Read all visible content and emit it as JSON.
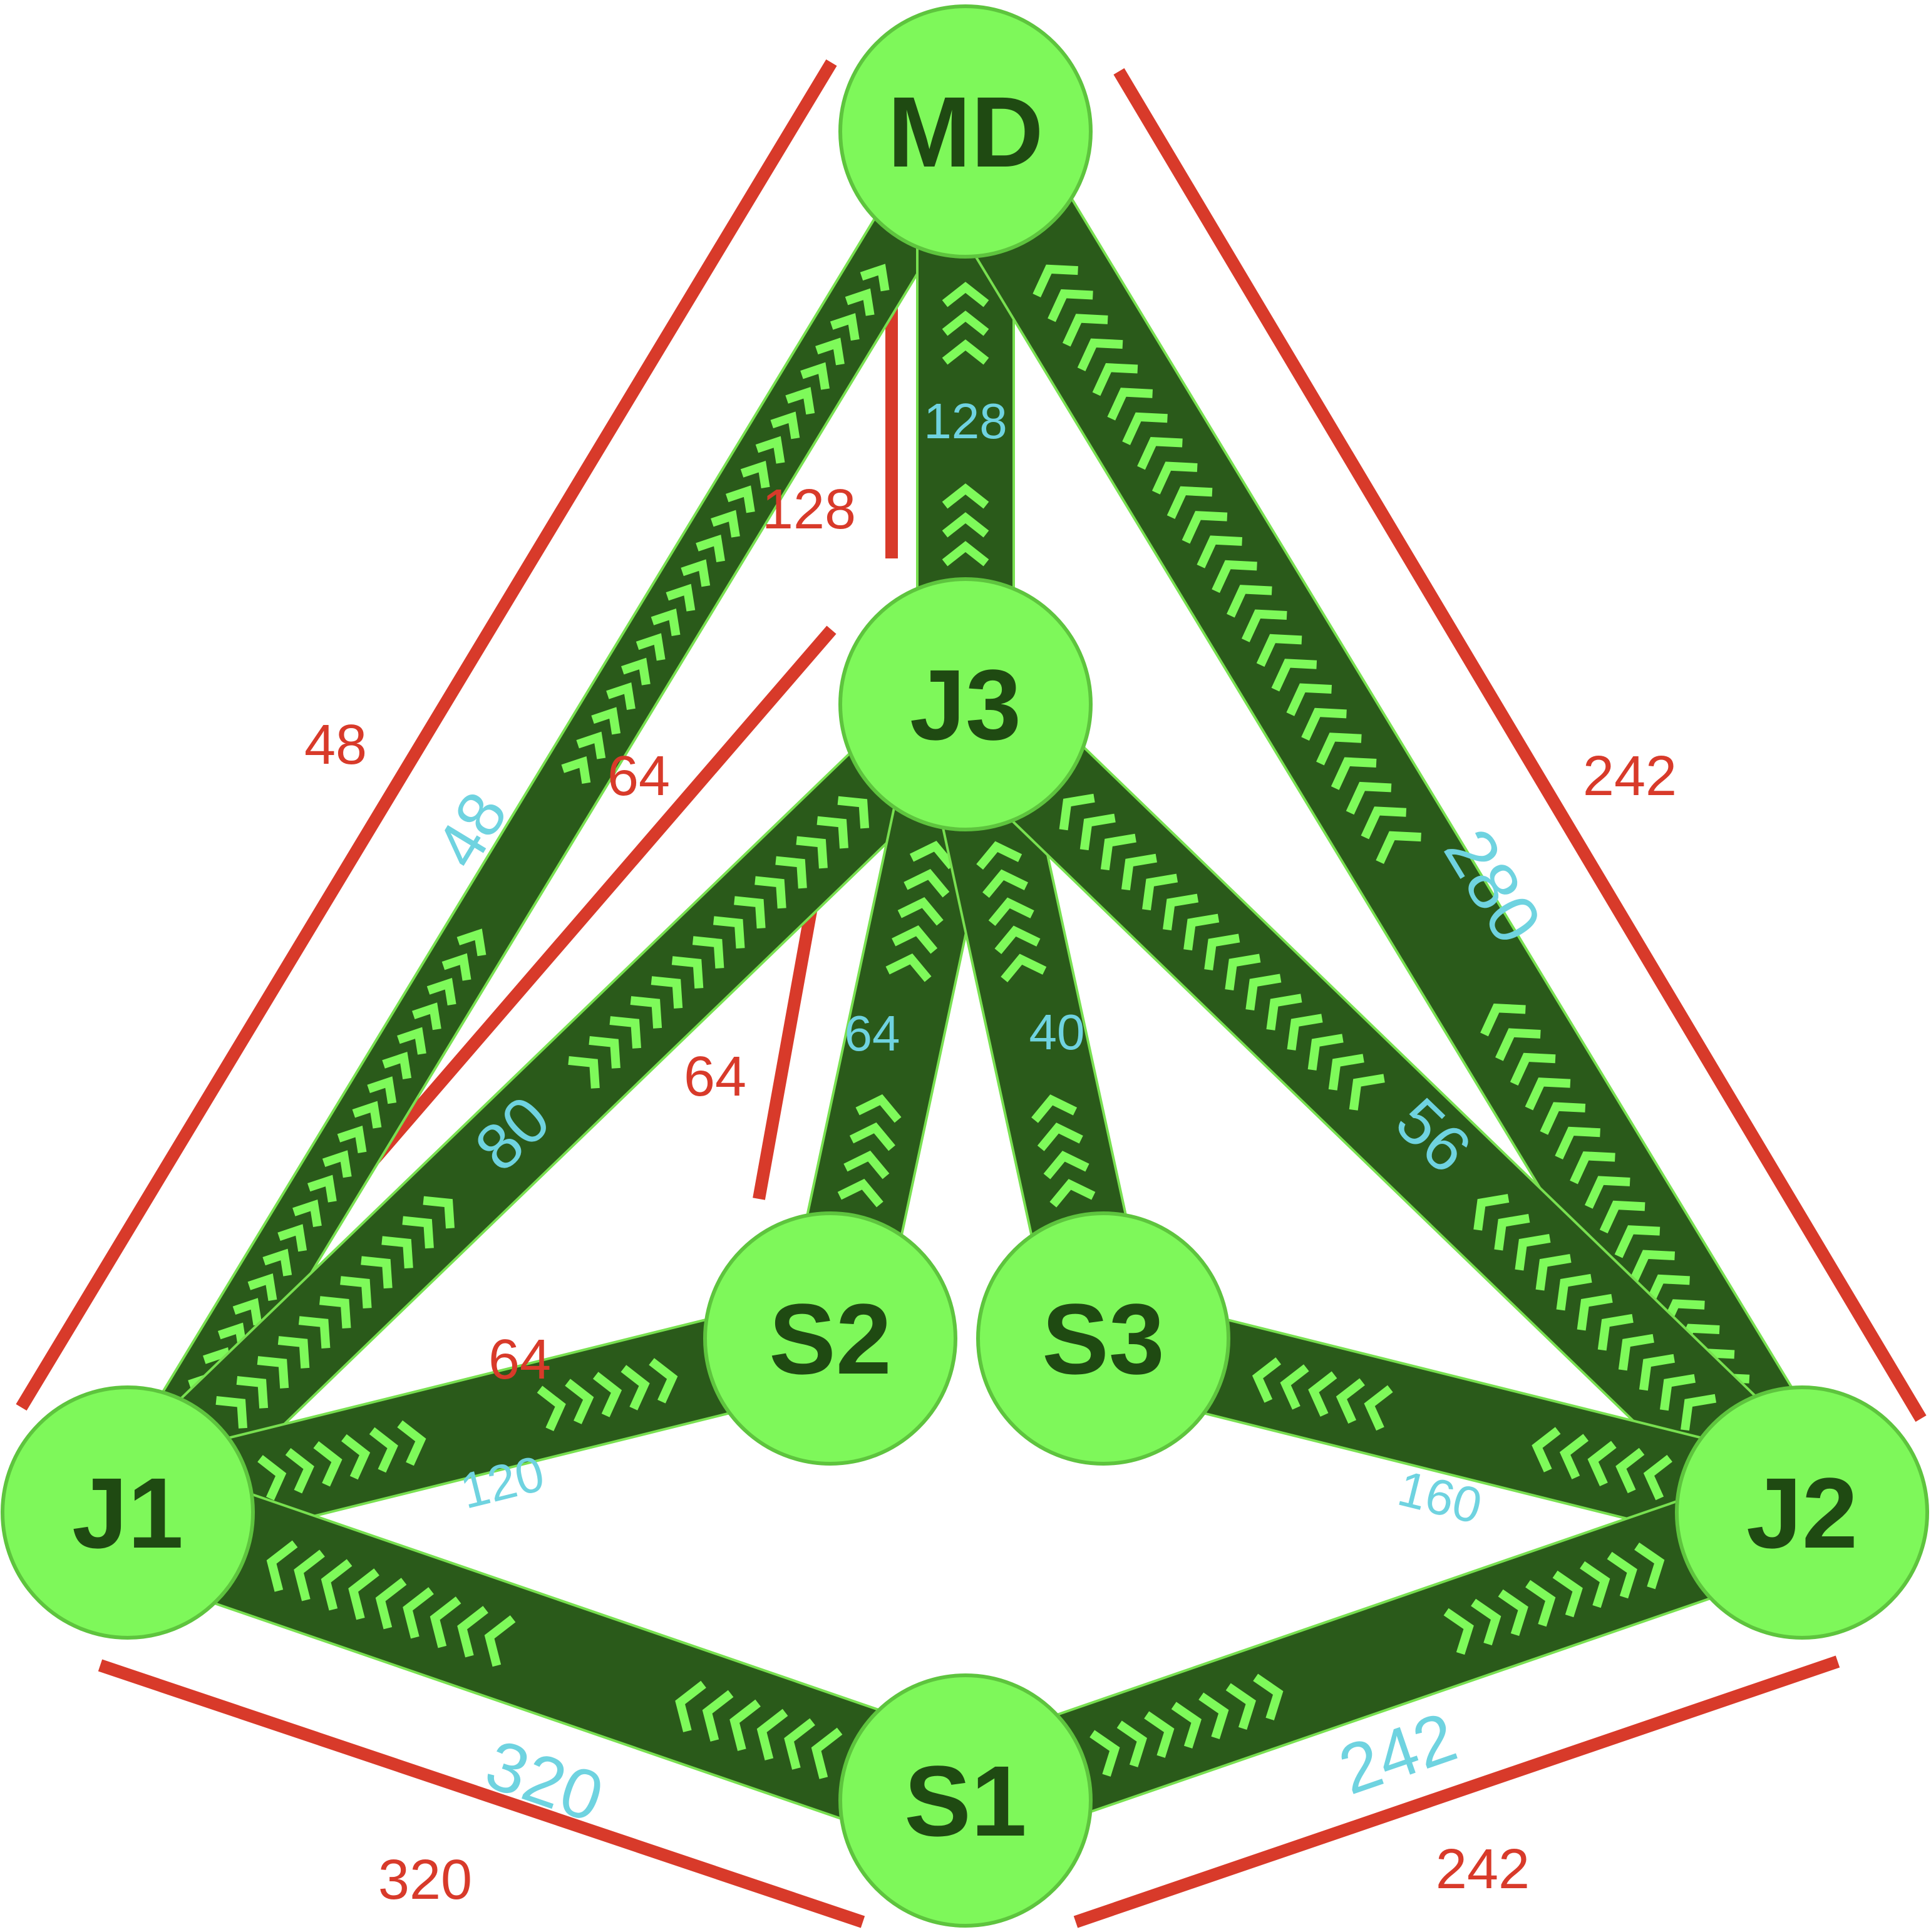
{
  "colors": {
    "edge_fill": "#2a5a1a",
    "edge_stroke": "#78e050",
    "chevron": "#7efa5a",
    "node_fill": "#7ef85a",
    "node_stroke": "#5ec43e",
    "node_text": "#1f4a12",
    "flow_text": "#6fd3e0",
    "capacity": "#d83a2a"
  },
  "nodes": [
    {
      "id": "MD",
      "label": "MD"
    },
    {
      "id": "J3",
      "label": "J3"
    },
    {
      "id": "J1",
      "label": "J1"
    },
    {
      "id": "J2",
      "label": "J2"
    },
    {
      "id": "S1",
      "label": "S1"
    },
    {
      "id": "S2",
      "label": "S2"
    },
    {
      "id": "S3",
      "label": "S3"
    }
  ],
  "edges": [
    {
      "from": "J1",
      "to": "MD",
      "flow": "48",
      "capacity": "48"
    },
    {
      "from": "J3",
      "to": "MD",
      "flow": "128",
      "capacity": "128"
    },
    {
      "from": "J2",
      "to": "MD",
      "flow": "280",
      "capacity": "242"
    },
    {
      "from": "J1",
      "to": "J3",
      "flow": "80",
      "capacity": "64"
    },
    {
      "from": "S2",
      "to": "J3",
      "flow": "64",
      "capacity": "64"
    },
    {
      "from": "S3",
      "to": "J3",
      "flow": "40",
      "capacity": ""
    },
    {
      "from": "J2",
      "to": "J3",
      "flow": "56",
      "capacity": ""
    },
    {
      "from": "J1",
      "to": "S2",
      "flow": "120",
      "capacity": "64"
    },
    {
      "from": "J2",
      "to": "S3",
      "flow": "160",
      "capacity": ""
    },
    {
      "from": "S1",
      "to": "J1",
      "flow": "320",
      "capacity": "320"
    },
    {
      "from": "S1",
      "to": "J2",
      "flow": "242",
      "capacity": "242"
    }
  ]
}
